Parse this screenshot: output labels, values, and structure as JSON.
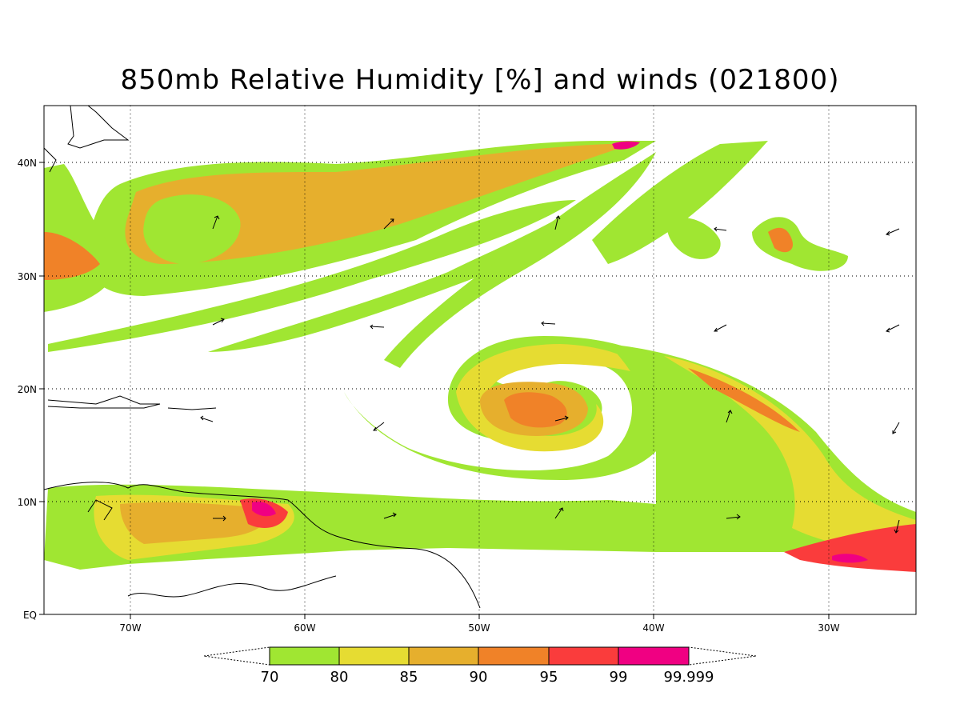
{
  "title": "850mb Relative Humidity [%] and winds (021800)",
  "axes": {
    "lon_labels": [
      "70W",
      "60W",
      "50W",
      "40W",
      "30W"
    ],
    "lat_labels": [
      "EQ",
      "10N",
      "20N",
      "30N",
      "40N"
    ],
    "lon_range": [
      -75,
      -25
    ],
    "lat_range": [
      0,
      45
    ],
    "grid": "dotted"
  },
  "colorbar": {
    "labels": [
      "70",
      "80",
      "85",
      "90",
      "95",
      "99",
      "99.999"
    ],
    "colors": [
      "#a0e632",
      "#e6dc32",
      "#e6af2d",
      "#f08228",
      "#fa3c3c",
      "#f00082"
    ]
  },
  "wind_vectors_direction": "arrows"
}
